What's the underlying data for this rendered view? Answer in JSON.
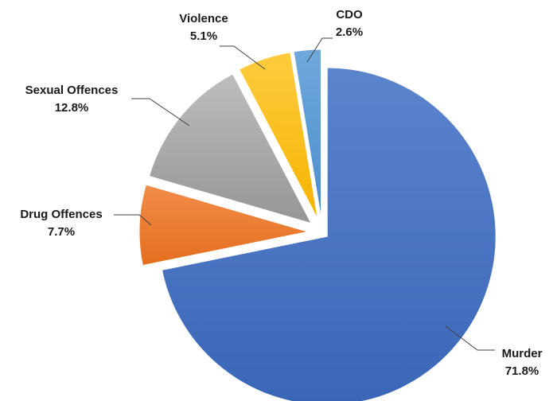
{
  "chart_data": {
    "type": "pie",
    "title": "",
    "exploded": true,
    "start": "12 o'clock, clockwise",
    "slices": [
      {
        "label": "Murder",
        "value": 71.8,
        "value_label": "71.8%",
        "color": "#4472C4"
      },
      {
        "label": "Drug Offences",
        "value": 7.7,
        "value_label": "7.7%",
        "color": "#ED7D31"
      },
      {
        "label": "Sexual Offences",
        "value": 12.8,
        "value_label": "12.8%",
        "color": "#A5A5A5"
      },
      {
        "label": "Violence",
        "value": 5.1,
        "value_label": "5.1%",
        "color": "#FFC000"
      },
      {
        "label": "CDO",
        "value": 2.6,
        "value_label": "2.6%",
        "color": "#5B9BD5"
      }
    ]
  }
}
